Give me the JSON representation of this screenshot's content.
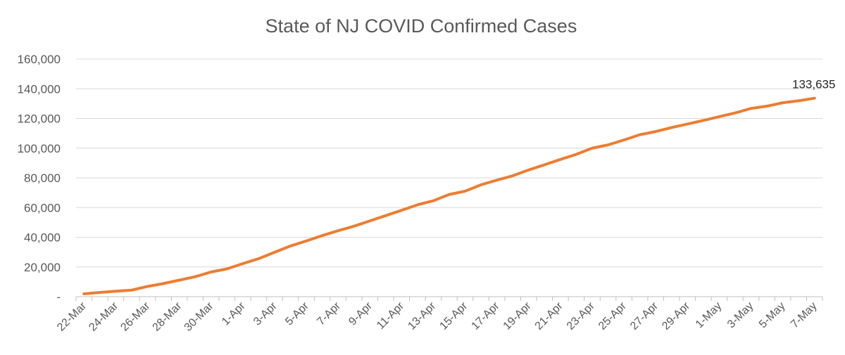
{
  "chart_data": {
    "type": "line",
    "title": "State of NJ COVID Confirmed Cases",
    "xlabel": "",
    "ylabel": "",
    "ylim": [
      0,
      160000
    ],
    "yticks": [
      {
        "value": 0,
        "label": "-"
      },
      {
        "value": 20000,
        "label": "20,000"
      },
      {
        "value": 40000,
        "label": "40,000"
      },
      {
        "value": 60000,
        "label": "60,000"
      },
      {
        "value": 80000,
        "label": "80,000"
      },
      {
        "value": 100000,
        "label": "100,000"
      },
      {
        "value": 120000,
        "label": "120,000"
      },
      {
        "value": 140000,
        "label": "140,000"
      },
      {
        "value": 160000,
        "label": "160,000"
      }
    ],
    "xtick_labels": [
      "22-Mar",
      "24-Mar",
      "26-Mar",
      "28-Mar",
      "30-Mar",
      "1-Apr",
      "3-Apr",
      "5-Apr",
      "7-Apr",
      "9-Apr",
      "11-Apr",
      "13-Apr",
      "15-Apr",
      "17-Apr",
      "19-Apr",
      "21-Apr",
      "23-Apr",
      "25-Apr",
      "27-Apr",
      "29-Apr",
      "1-May",
      "3-May",
      "5-May",
      "7-May"
    ],
    "grid": true,
    "legend": "none",
    "line_color": "#ED7D31",
    "x": [
      "22-Mar",
      "23-Mar",
      "24-Mar",
      "25-Mar",
      "26-Mar",
      "27-Mar",
      "28-Mar",
      "29-Mar",
      "30-Mar",
      "31-Mar",
      "1-Apr",
      "2-Apr",
      "3-Apr",
      "4-Apr",
      "5-Apr",
      "6-Apr",
      "7-Apr",
      "8-Apr",
      "9-Apr",
      "10-Apr",
      "11-Apr",
      "12-Apr",
      "13-Apr",
      "14-Apr",
      "15-Apr",
      "16-Apr",
      "17-Apr",
      "18-Apr",
      "19-Apr",
      "20-Apr",
      "21-Apr",
      "22-Apr",
      "23-Apr",
      "24-Apr",
      "25-Apr",
      "26-Apr",
      "27-Apr",
      "28-Apr",
      "29-Apr",
      "30-Apr",
      "1-May",
      "2-May",
      "3-May",
      "4-May",
      "5-May",
      "6-May",
      "7-May"
    ],
    "values": [
      1914,
      2844,
      3675,
      4402,
      6876,
      8825,
      11124,
      13386,
      16636,
      18696,
      22255,
      25590,
      29895,
      34124,
      37505,
      41090,
      44416,
      47437,
      51027,
      54588,
      58151,
      61850,
      64584,
      68824,
      71030,
      75317,
      78467,
      81420,
      85301,
      88806,
      92387,
      95865,
      99989,
      102196,
      105498,
      109038,
      111188,
      113856,
      116264,
      118652,
      121190,
      123717,
      126744,
      128269,
      130593,
      131890,
      133635
    ],
    "annotations": [
      {
        "index": 46,
        "text": "133,635"
      }
    ]
  }
}
